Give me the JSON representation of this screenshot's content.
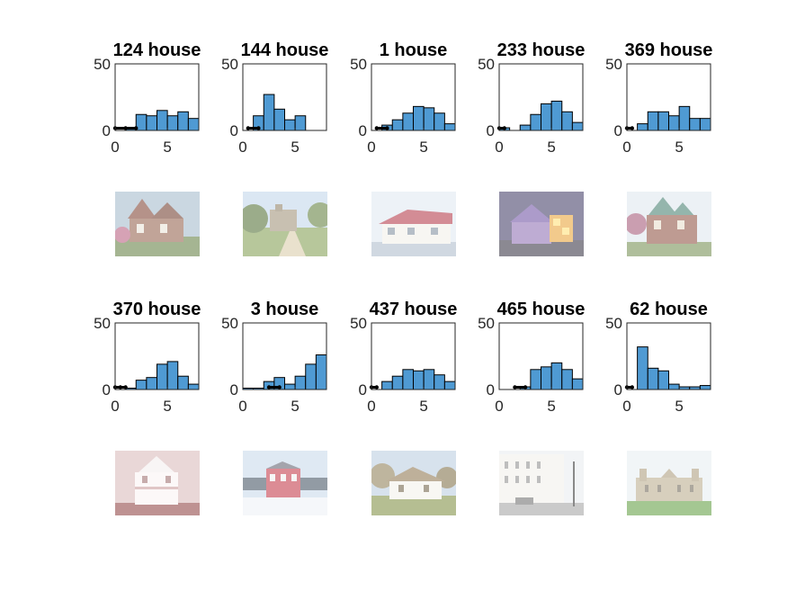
{
  "chart_data": [
    {
      "type": "bar",
      "title": "124 house",
      "bin_edges": [
        0,
        1,
        2,
        3,
        4,
        5,
        6,
        7,
        8
      ],
      "values": [
        0,
        2,
        12,
        11,
        15,
        11,
        14,
        9
      ],
      "xticks": [
        0,
        5
      ],
      "yticks": [
        0,
        50
      ],
      "xlim": [
        0,
        8
      ],
      "ylim": [
        0,
        50
      ],
      "marker": [
        0,
        1,
        2
      ],
      "photo": "victorian-house"
    },
    {
      "type": "bar",
      "title": "144 house",
      "bin_edges": [
        0,
        1,
        2,
        3,
        4,
        5,
        6,
        7,
        8
      ],
      "values": [
        0,
        11,
        27,
        16,
        8,
        11,
        0,
        0
      ],
      "xticks": [
        0,
        5
      ],
      "yticks": [
        0,
        50
      ],
      "xlim": [
        0,
        8
      ],
      "ylim": [
        0,
        50
      ],
      "marker": [
        0.5,
        1.5
      ],
      "photo": "country-estate"
    },
    {
      "type": "bar",
      "title": "1 house",
      "bin_edges": [
        0,
        1,
        2,
        3,
        4,
        5,
        6,
        7,
        8
      ],
      "values": [
        0,
        4,
        8,
        13,
        18,
        17,
        13,
        5
      ],
      "xticks": [
        0,
        5
      ],
      "yticks": [
        0,
        50
      ],
      "xlim": [
        0,
        8
      ],
      "ylim": [
        0,
        50
      ],
      "marker": [
        0.5,
        1.5
      ],
      "photo": "red-roof-house"
    },
    {
      "type": "bar",
      "title": "233 house",
      "bin_edges": [
        0,
        1,
        2,
        3,
        4,
        5,
        6,
        7,
        8
      ],
      "values": [
        2,
        0,
        4,
        12,
        20,
        22,
        14,
        6
      ],
      "xticks": [
        0,
        5
      ],
      "yticks": [
        0,
        50
      ],
      "xlim": [
        0,
        8
      ],
      "ylim": [
        0,
        50
      ],
      "marker": [
        0,
        0.5
      ],
      "photo": "night-house"
    },
    {
      "type": "bar",
      "title": "369 house",
      "bin_edges": [
        0,
        1,
        2,
        3,
        4,
        5,
        6,
        7,
        8
      ],
      "values": [
        0,
        5,
        14,
        14,
        11,
        18,
        9,
        9
      ],
      "xticks": [
        0,
        5
      ],
      "yticks": [
        0,
        50
      ],
      "xlim": [
        0,
        8
      ],
      "ylim": [
        0,
        50
      ],
      "marker": [
        0,
        0.5
      ],
      "photo": "green-victorian"
    },
    {
      "type": "bar",
      "title": "370 house",
      "bin_edges": [
        0,
        1,
        2,
        3,
        4,
        5,
        6,
        7,
        8
      ],
      "values": [
        0,
        1,
        7,
        9,
        19,
        21,
        10,
        4
      ],
      "xticks": [
        0,
        5
      ],
      "yticks": [
        0,
        50
      ],
      "xlim": [
        0,
        8
      ],
      "ylim": [
        0,
        50
      ],
      "marker": [
        0,
        0.5,
        1
      ],
      "photo": "white-porch-house"
    },
    {
      "type": "bar",
      "title": "3 house",
      "bin_edges": [
        0,
        1,
        2,
        3,
        4,
        5,
        6,
        7,
        8
      ],
      "values": [
        1,
        1,
        6,
        9,
        4,
        10,
        19,
        26
      ],
      "xticks": [
        0,
        5
      ],
      "yticks": [
        0,
        50
      ],
      "xlim": [
        0,
        8
      ],
      "ylim": [
        0,
        50
      ],
      "marker": [
        2.5,
        3.5
      ],
      "photo": "red-house-winter"
    },
    {
      "type": "bar",
      "title": "437 house",
      "bin_edges": [
        0,
        1,
        2,
        3,
        4,
        5,
        6,
        7,
        8
      ],
      "values": [
        0,
        6,
        10,
        15,
        14,
        15,
        11,
        6
      ],
      "xticks": [
        0,
        5
      ],
      "yticks": [
        0,
        50
      ],
      "xlim": [
        0,
        8
      ],
      "ylim": [
        0,
        50
      ],
      "marker": [
        0,
        0.5
      ],
      "photo": "thatched-cottage"
    },
    {
      "type": "bar",
      "title": "465 house",
      "bin_edges": [
        0,
        1,
        2,
        3,
        4,
        5,
        6,
        7,
        8
      ],
      "values": [
        0,
        0,
        2,
        15,
        17,
        20,
        15,
        8
      ],
      "xticks": [
        0,
        5
      ],
      "yticks": [
        0,
        50
      ],
      "xlim": [
        0,
        8
      ],
      "ylim": [
        0,
        50
      ],
      "marker": [
        1.5,
        2.5
      ],
      "photo": "terrace-street"
    },
    {
      "type": "bar",
      "title": "62 house",
      "bin_edges": [
        0,
        1,
        2,
        3,
        4,
        5,
        6,
        7,
        8
      ],
      "values": [
        0,
        32,
        16,
        14,
        4,
        2,
        2,
        3
      ],
      "xticks": [
        0,
        5
      ],
      "yticks": [
        0,
        50
      ],
      "xlim": [
        0,
        8
      ],
      "ylim": [
        0,
        50
      ],
      "marker": [
        0,
        0.5
      ],
      "photo": "stately-home"
    }
  ],
  "colors": {
    "bar_fill": "#4f9ad3",
    "bar_edge": "#000000",
    "axis": "#262626",
    "marker": "#000000"
  }
}
